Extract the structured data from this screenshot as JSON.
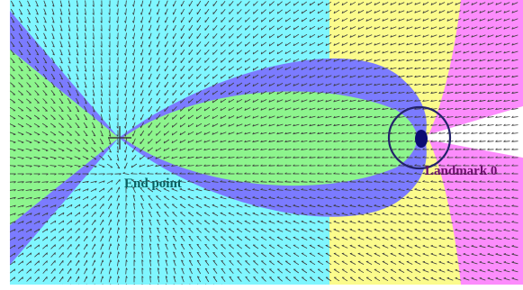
{
  "diagram": {
    "colors": {
      "cyan": "#7ff6ff",
      "green": "#8df58d",
      "blue": "#7b7bff",
      "yellow": "#fbfb8c",
      "magenta": "#fc8cfc",
      "white": "#ffffff",
      "arrow": "#3a3a3a",
      "circle": "#23236a",
      "end_label": "#0a5f5f",
      "landmark_label": "#6a0f6a",
      "landmark_dot": "#0c0c72"
    },
    "end_point": {
      "label": "End point"
    },
    "landmark": {
      "label": "Landmark 0"
    }
  }
}
